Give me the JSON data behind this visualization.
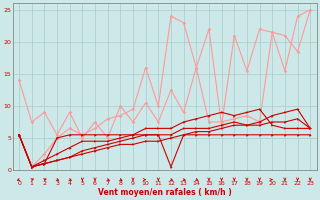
{
  "x": [
    0,
    1,
    2,
    3,
    4,
    5,
    6,
    7,
    8,
    9,
    10,
    11,
    12,
    13,
    14,
    15,
    16,
    17,
    18,
    19,
    20,
    21,
    22,
    23
  ],
  "line_pink1": [
    14.0,
    7.5,
    9.0,
    5.5,
    9.0,
    5.0,
    7.5,
    5.0,
    10.0,
    7.5,
    10.5,
    7.5,
    12.5,
    9.0,
    16.0,
    7.5,
    7.5,
    8.0,
    8.5,
    7.5,
    21.5,
    21.0,
    18.5,
    25.0
  ],
  "line_pink2": [
    5.5,
    0.5,
    2.5,
    5.0,
    6.5,
    5.5,
    6.5,
    8.0,
    8.5,
    9.5,
    16.0,
    10.0,
    24.0,
    23.0,
    16.0,
    22.0,
    7.0,
    21.0,
    15.5,
    22.0,
    21.5,
    15.5,
    24.0,
    25.0
  ],
  "line_red1": [
    5.5,
    0.5,
    1.0,
    5.0,
    5.5,
    5.5,
    5.5,
    5.5,
    5.5,
    5.5,
    5.5,
    5.5,
    0.5,
    5.5,
    5.5,
    5.5,
    5.5,
    5.5,
    5.5,
    5.5,
    5.5,
    5.5,
    5.5,
    5.5
  ],
  "line_red2": [
    5.5,
    0.5,
    1.0,
    1.5,
    2.0,
    2.5,
    3.0,
    3.5,
    4.0,
    4.0,
    4.5,
    4.5,
    5.0,
    5.5,
    6.0,
    6.0,
    6.5,
    7.0,
    7.0,
    7.0,
    7.5,
    7.5,
    8.0,
    6.5
  ],
  "line_red3": [
    5.5,
    0.5,
    1.0,
    1.5,
    2.0,
    3.0,
    3.5,
    4.0,
    4.5,
    5.0,
    5.5,
    5.5,
    5.5,
    6.5,
    6.5,
    6.5,
    7.0,
    7.5,
    7.0,
    7.5,
    8.5,
    9.0,
    9.5,
    6.5
  ],
  "line_red4": [
    5.5,
    0.5,
    1.5,
    2.5,
    3.5,
    4.5,
    4.5,
    4.5,
    5.0,
    5.5,
    6.5,
    6.5,
    6.5,
    7.5,
    8.0,
    8.5,
    9.0,
    8.5,
    9.0,
    9.5,
    7.0,
    6.5,
    6.5,
    6.5
  ],
  "bg_color": "#cce8e8",
  "grid_color": "#aacccc",
  "pink_color": "#ff9999",
  "red_color": "#cc0000",
  "xlabel": "Vent moyen/en rafales ( km/h )",
  "xlim": [
    0,
    23
  ],
  "ylim": [
    0,
    26
  ],
  "yticks": [
    0,
    5,
    10,
    15,
    20,
    25
  ],
  "xticks": [
    0,
    1,
    2,
    3,
    4,
    5,
    6,
    7,
    8,
    9,
    10,
    11,
    12,
    13,
    14,
    15,
    16,
    17,
    18,
    19,
    20,
    21,
    22,
    23
  ],
  "arrow_angles": [
    225,
    45,
    45,
    315,
    315,
    270,
    270,
    315,
    315,
    270,
    0,
    270,
    315,
    315,
    315,
    270,
    270,
    270,
    270,
    270,
    0,
    270,
    270,
    270
  ]
}
